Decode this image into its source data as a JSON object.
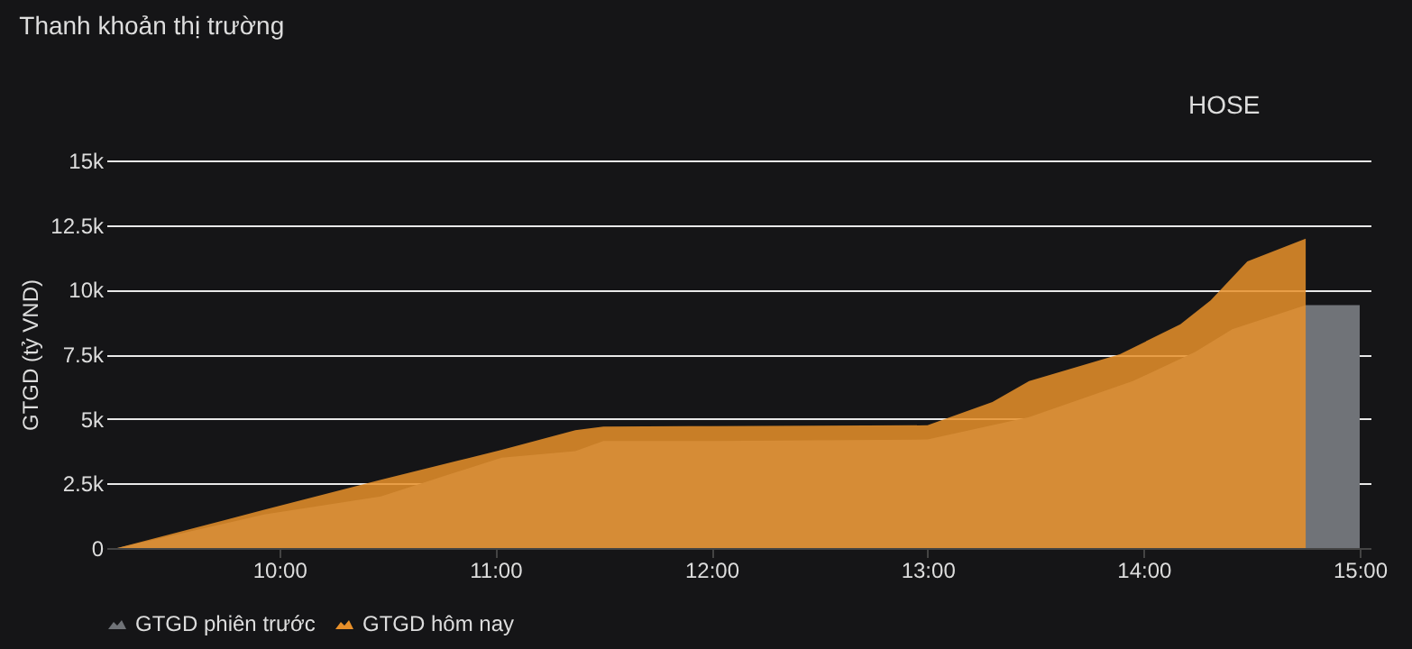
{
  "chart_data": {
    "type": "area",
    "title": "Thanh khoản thị trường",
    "ylabel": "GTGD (tỷ VND)",
    "annotations": [
      "HOSE"
    ],
    "xlim": [
      9.2,
      15.05
    ],
    "xticks": [
      {
        "value": 10,
        "label": "10:00"
      },
      {
        "value": 11,
        "label": "11:00"
      },
      {
        "value": 12,
        "label": "12:00"
      },
      {
        "value": 13,
        "label": "13:00"
      },
      {
        "value": 14,
        "label": "14:00"
      },
      {
        "value": 15,
        "label": "15:00"
      }
    ],
    "ylim": [
      0,
      15000
    ],
    "yticks": [
      {
        "value": 0,
        "label": "0"
      },
      {
        "value": 2500,
        "label": "2.5k"
      },
      {
        "value": 5000,
        "label": "5k"
      },
      {
        "value": 7500,
        "label": "7.5k"
      },
      {
        "value": 10000,
        "label": "10k"
      },
      {
        "value": 12500,
        "label": "12.5k"
      },
      {
        "value": 15000,
        "label": "15k"
      }
    ],
    "grid": "y",
    "legend": "bottom",
    "series": [
      {
        "name": "GTGD phiên trước",
        "color": "#707378",
        "x": [
          9.25,
          9.93,
          10.47,
          11.03,
          11.37,
          11.5,
          12.0,
          13.0,
          13.47,
          13.95,
          14.24,
          14.41,
          14.75,
          14.76,
          15.0
        ],
        "values": [
          0,
          1300,
          2000,
          3500,
          3750,
          4140,
          4140,
          4200,
          5070,
          6460,
          7600,
          8470,
          9400,
          9400,
          9400
        ]
      },
      {
        "name": "GTGD hôm nay",
        "color": "#e8902a",
        "x": [
          9.25,
          9.93,
          10.47,
          11.03,
          11.37,
          11.5,
          12.0,
          13.0,
          13.3,
          13.47,
          13.89,
          14.17,
          14.31,
          14.48,
          14.75
        ],
        "values": [
          0,
          1480,
          2640,
          3800,
          4560,
          4700,
          4720,
          4750,
          5650,
          6460,
          7500,
          8660,
          9580,
          11090,
          11970
        ]
      }
    ]
  }
}
